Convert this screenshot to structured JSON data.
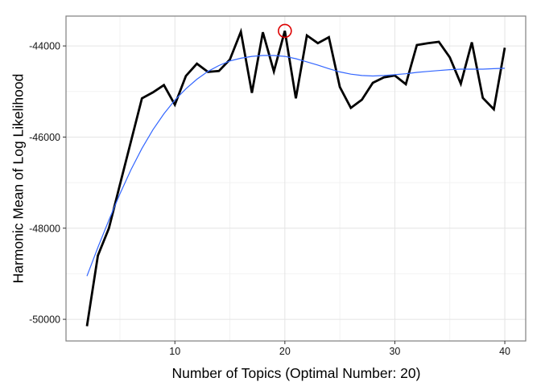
{
  "chart_data": {
    "type": "line",
    "title": "",
    "xlabel": "Number of Topics (Optimal Number: 20)",
    "ylabel": "Harmonic Mean of Log Likelihood",
    "x": [
      2,
      3,
      4,
      5,
      6,
      7,
      8,
      9,
      10,
      11,
      12,
      13,
      14,
      15,
      16,
      17,
      18,
      19,
      20,
      21,
      22,
      23,
      24,
      25,
      26,
      27,
      28,
      29,
      30,
      31,
      32,
      33,
      34,
      35,
      36,
      37,
      38,
      39,
      40
    ],
    "series": [
      {
        "name": "harmonic-mean",
        "color": "#000000",
        "width": 2.8,
        "values": [
          -50150,
          -48600,
          -48000,
          -47050,
          -46100,
          -45150,
          -45020,
          -44860,
          -45290,
          -44660,
          -44390,
          -44570,
          -44550,
          -44300,
          -43690,
          -45030,
          -43700,
          -44560,
          -43670,
          -45150,
          -43770,
          -43940,
          -43810,
          -44900,
          -45360,
          -45180,
          -44810,
          -44690,
          -44650,
          -44840,
          -43980,
          -43940,
          -43910,
          -44250,
          -44830,
          -43920,
          -45140,
          -45390,
          -44040
        ]
      },
      {
        "name": "smooth-trend",
        "color": "#3366ff",
        "width": 1.2,
        "values": [
          -49050,
          -48420,
          -47820,
          -47250,
          -46720,
          -46250,
          -45840,
          -45490,
          -45190,
          -44940,
          -44730,
          -44560,
          -44430,
          -44330,
          -44270,
          -44230,
          -44210,
          -44210,
          -44230,
          -44280,
          -44350,
          -44420,
          -44500,
          -44570,
          -44620,
          -44650,
          -44660,
          -44650,
          -44630,
          -44610,
          -44580,
          -44560,
          -44540,
          -44520,
          -44510,
          -44510,
          -44510,
          -44500,
          -44490
        ]
      }
    ],
    "annotation": {
      "type": "open-circle",
      "label": "optimal number of topics marker",
      "x": 20,
      "y": -43670,
      "radius_px": 8,
      "color": "#dd0000"
    },
    "xlim": [
      0.1,
      41.9
    ],
    "ylim": [
      -50475,
      -43345
    ],
    "x_major_ticks": [
      10,
      20,
      30,
      40
    ],
    "x_tick_labels": [
      "10",
      "20",
      "30",
      "40"
    ],
    "x_minor_ticks": [
      5,
      15,
      25,
      35
    ],
    "y_major_ticks": [
      -44000,
      -46000,
      -48000,
      -50000
    ],
    "y_tick_labels": [
      "-44000",
      "-46000",
      "-48000",
      "-50000"
    ],
    "y_minor_ticks": [
      -45000,
      -47000,
      -49000
    ],
    "grid": "major+minor",
    "legend": "none",
    "colors": {
      "grid_major": "#e4e4e4",
      "grid_minor": "#f2f2f2",
      "panel_border": "#7f7f7f",
      "tick": "#333333",
      "line_black": "#000000",
      "line_blue": "#3366ff",
      "annotation_red": "#dd0000"
    }
  }
}
